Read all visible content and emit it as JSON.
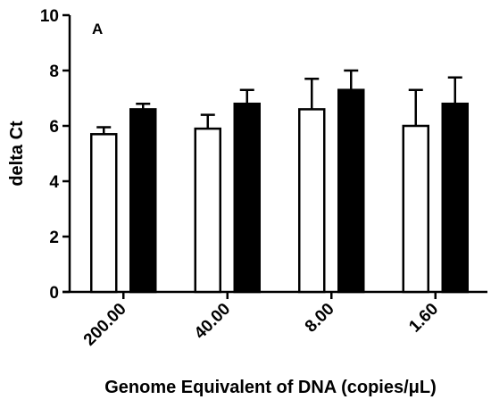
{
  "chart_data": {
    "type": "bar",
    "panel_label": "A",
    "ylabel": "delta Ct",
    "xlabel": "Genome Equivalent of DNA (copies/μL)",
    "ylim": [
      0,
      10
    ],
    "yticks": [
      "0",
      "2",
      "4",
      "6",
      "8",
      "10"
    ],
    "categories": [
      "200.00",
      "40.00",
      "8.00",
      "1.60"
    ],
    "series": [
      {
        "fill": "white",
        "values": [
          5.7,
          5.9,
          6.6,
          6.0
        ],
        "errors": [
          0.25,
          0.5,
          1.1,
          1.3
        ]
      },
      {
        "fill": "black",
        "values": [
          6.6,
          6.8,
          7.3,
          6.8
        ],
        "errors": [
          0.2,
          0.5,
          0.7,
          0.95
        ]
      }
    ],
    "grid": false,
    "legend": "none"
  }
}
